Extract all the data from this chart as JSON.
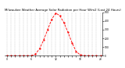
{
  "title": "Milwaukee Weather Average Solar Radiation per Hour W/m2 (Last 24 Hours)",
  "x_values": [
    0,
    1,
    2,
    3,
    4,
    5,
    6,
    7,
    8,
    9,
    10,
    11,
    12,
    13,
    14,
    15,
    16,
    17,
    18,
    19,
    20,
    21,
    22,
    23
  ],
  "y_values": [
    0,
    0,
    0,
    0,
    0,
    0,
    1,
    20,
    80,
    180,
    300,
    420,
    490,
    460,
    380,
    270,
    150,
    50,
    10,
    1,
    0,
    0,
    0,
    0
  ],
  "y_max": 500,
  "line_color": "#ff0000",
  "bg_color": "#ffffff",
  "plot_bg": "#ffffff",
  "grid_color": "#aaaaaa",
  "title_color": "#000000",
  "title_fontsize": 2.8,
  "tick_fontsize": 2.2,
  "ylabel_right": [
    "500",
    "400",
    "300",
    "200",
    "100",
    "0"
  ],
  "ylabel_right_vals": [
    500,
    400,
    300,
    200,
    100,
    0
  ],
  "x_tick_labels": [
    "0",
    "",
    "",
    "",
    "",
    "",
    "6",
    "",
    "",
    "",
    "",
    "",
    "12",
    "",
    "",
    "",
    "",
    "",
    "18",
    "",
    "",
    "",
    "",
    "23"
  ],
  "marker": ".",
  "linestyle": "--",
  "linewidth": 0.6,
  "markersize": 1.2
}
